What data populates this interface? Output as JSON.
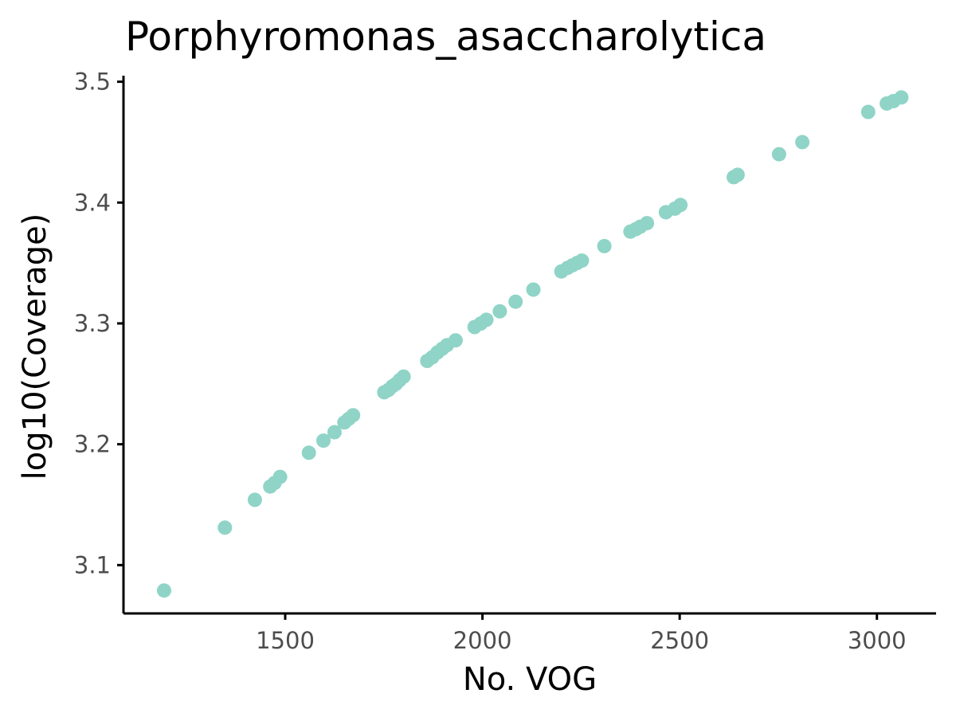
{
  "chart_data": {
    "type": "scatter",
    "title": "Porphyromonas_asaccharolytica",
    "xlabel": "No. VOG",
    "ylabel": "log10(Coverage)",
    "xlim": [
      1090,
      3150
    ],
    "ylim": [
      3.06,
      3.505
    ],
    "xticks": [
      1500,
      2000,
      2500,
      3000
    ],
    "yticks": [
      3.1,
      3.2,
      3.3,
      3.4,
      3.5
    ],
    "xtick_labels": [
      "1500",
      "2000",
      "2500",
      "3000"
    ],
    "ytick_labels": [
      "3.1",
      "3.2",
      "3.3",
      "3.4",
      "3.5"
    ],
    "grid": false,
    "legend": "none",
    "point_color": "#8fd4c7",
    "points": [
      [
        1193,
        3.079
      ],
      [
        1347,
        3.131
      ],
      [
        1423,
        3.154
      ],
      [
        1462,
        3.165
      ],
      [
        1473,
        3.168
      ],
      [
        1487,
        3.173
      ],
      [
        1560,
        3.193
      ],
      [
        1597,
        3.203
      ],
      [
        1625,
        3.21
      ],
      [
        1650,
        3.218
      ],
      [
        1661,
        3.221
      ],
      [
        1672,
        3.224
      ],
      [
        1751,
        3.243
      ],
      [
        1762,
        3.245
      ],
      [
        1772,
        3.248
      ],
      [
        1781,
        3.25
      ],
      [
        1790,
        3.253
      ],
      [
        1800,
        3.256
      ],
      [
        1860,
        3.269
      ],
      [
        1873,
        3.272
      ],
      [
        1886,
        3.276
      ],
      [
        1898,
        3.279
      ],
      [
        1910,
        3.282
      ],
      [
        1932,
        3.286
      ],
      [
        1980,
        3.297
      ],
      [
        1996,
        3.3
      ],
      [
        2010,
        3.303
      ],
      [
        2044,
        3.31
      ],
      [
        2084,
        3.318
      ],
      [
        2129,
        3.328
      ],
      [
        2200,
        3.343
      ],
      [
        2216,
        3.346
      ],
      [
        2228,
        3.348
      ],
      [
        2240,
        3.35
      ],
      [
        2252,
        3.352
      ],
      [
        2309,
        3.364
      ],
      [
        2375,
        3.376
      ],
      [
        2389,
        3.378
      ],
      [
        2400,
        3.38
      ],
      [
        2417,
        3.383
      ],
      [
        2465,
        3.392
      ],
      [
        2488,
        3.395
      ],
      [
        2502,
        3.398
      ],
      [
        2637,
        3.421
      ],
      [
        2647,
        3.423
      ],
      [
        2752,
        3.44
      ],
      [
        2811,
        3.45
      ],
      [
        2978,
        3.475
      ],
      [
        3025,
        3.482
      ],
      [
        3042,
        3.484
      ],
      [
        3062,
        3.487
      ]
    ]
  }
}
